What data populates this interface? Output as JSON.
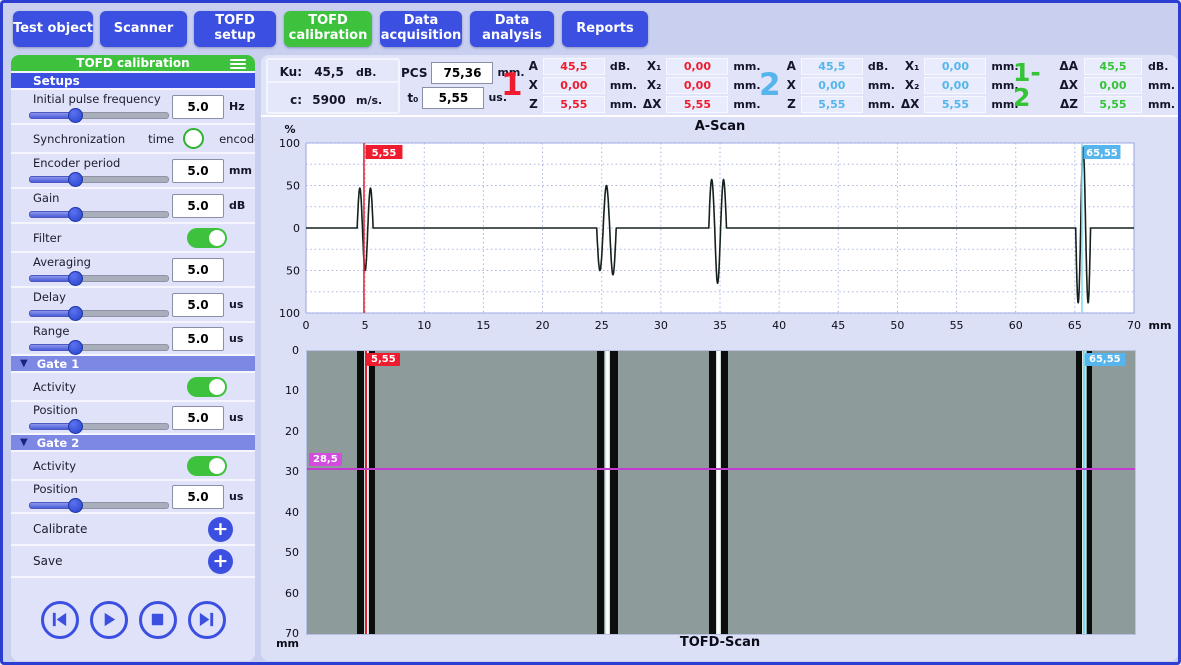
{
  "colors": {
    "accent_blue": "#3b4fe0",
    "accent_green": "#3ec23e",
    "gate_header": "#7c88e4",
    "value_red": "#ee1c2e",
    "value_blue": "#55b5ec",
    "value_green": "#35c435",
    "tofd_background": "#8d9c9a",
    "magenta_cursor": "#c33ad1"
  },
  "nav": {
    "items": [
      {
        "label": "Test object",
        "active": false
      },
      {
        "label": "Scanner",
        "active": false
      },
      {
        "label": "TOFD setup",
        "active": false
      },
      {
        "label": "TOFD calibration",
        "active": true
      },
      {
        "label": "Data acquisition",
        "active": false
      },
      {
        "label": "Data analysis",
        "active": false
      },
      {
        "label": "Reports",
        "active": false
      }
    ]
  },
  "sidebar": {
    "header": {
      "title": "TOFD calibration"
    },
    "setups_title": "Setups",
    "rows": {
      "initial_pulse_frequency": {
        "label": "Initial pulse frequency",
        "value": "5.0",
        "unit": "Hz"
      },
      "synchronization": {
        "label": "Synchronization",
        "time_label": "time",
        "encoder_label": "encoder",
        "selected": "time"
      },
      "encoder_period": {
        "label": "Encoder period",
        "value": "5.0",
        "unit": "mm"
      },
      "gain": {
        "label": "Gain",
        "value": "5.0",
        "unit": "dB"
      },
      "filter": {
        "label": "Filter",
        "on": true
      },
      "averaging": {
        "label": "Averaging",
        "value": "5.0",
        "unit": ""
      },
      "delay": {
        "label": "Delay",
        "value": "5.0",
        "unit": "us"
      },
      "range": {
        "label": "Range",
        "value": "5.0",
        "unit": "us"
      }
    },
    "gate1": {
      "title": "Gate 1",
      "activity_label": "Activity",
      "activity_on": true,
      "position_label": "Position",
      "position_value": "5.0",
      "position_unit": "us"
    },
    "gate2": {
      "title": "Gate 2",
      "activity_label": "Activity",
      "activity_on": true,
      "position_label": "Position",
      "position_value": "5.0",
      "position_unit": "us"
    },
    "calibrate_label": "Calibrate",
    "save_label": "Save"
  },
  "info_bar": {
    "ku": {
      "label": "Ku:",
      "value": "45,5",
      "unit": "dB."
    },
    "c": {
      "label": "c:",
      "value": "5900",
      "unit": "m/s."
    },
    "pcs": {
      "label": "PCS",
      "value": "75,36",
      "unit": "mm."
    },
    "t0": {
      "label": "t₀",
      "value": "5,55",
      "unit": "us."
    },
    "group1": {
      "id": "1",
      "rows": [
        {
          "l1": "A",
          "v1": "45,5",
          "u1": "dB.",
          "l2": "X₁",
          "v2": "0,00",
          "u2": "mm."
        },
        {
          "l1": "X",
          "v1": "0,00",
          "u1": "mm.",
          "l2": "X₂",
          "v2": "0,00",
          "u2": "mm."
        },
        {
          "l1": "Z",
          "v1": "5,55",
          "u1": "mm.",
          "l2": "ΔX",
          "v2": "5,55",
          "u2": "mm."
        }
      ]
    },
    "group2": {
      "id": "2",
      "rows": [
        {
          "l1": "A",
          "v1": "45,5",
          "u1": "dB.",
          "l2": "X₁",
          "v2": "0,00",
          "u2": "mm."
        },
        {
          "l1": "X",
          "v1": "0,00",
          "u1": "mm.",
          "l2": "X₂",
          "v2": "0,00",
          "u2": "mm."
        },
        {
          "l1": "Z",
          "v1": "5,55",
          "u1": "mm.",
          "l2": "ΔX",
          "v2": "5,55",
          "u2": "mm."
        }
      ]
    },
    "group12": {
      "id": "1-2",
      "rows": [
        {
          "l": "ΔA",
          "v": "45,5",
          "u": "dB."
        },
        {
          "l": "ΔX",
          "v": "0,00",
          "u": "mm."
        },
        {
          "l": "ΔZ",
          "v": "5,55",
          "u": "mm."
        }
      ]
    }
  },
  "chart_data": [
    {
      "type": "line",
      "title": "A-Scan",
      "x_unit": "mm",
      "y_unit": "%",
      "xlim": [
        0,
        70
      ],
      "ylim": [
        -100,
        100
      ],
      "xticks": [
        0,
        5,
        10,
        15,
        20,
        25,
        30,
        35,
        40,
        45,
        50,
        55,
        60,
        65,
        70
      ],
      "ytick_values": [
        100,
        50,
        0,
        -50,
        -100
      ],
      "ytick_labels": [
        "100",
        "50",
        "0",
        "50",
        "100"
      ],
      "grid": true,
      "series": [
        {
          "name": "A-scan waveform",
          "color": "#15211d",
          "baseline_pct": 0,
          "pulses": [
            {
              "center_mm": 5.0,
              "half_cycle_mm": 0.45,
              "lobes_pct": [
                47,
                -50,
                47
              ]
            },
            {
              "center_mm": 25.4,
              "half_cycle_mm": 0.55,
              "lobes_pct": [
                -50,
                50,
                -55
              ]
            },
            {
              "center_mm": 34.8,
              "half_cycle_mm": 0.5,
              "lobes_pct": [
                57,
                -65,
                57
              ]
            },
            {
              "center_mm": 65.7,
              "half_cycle_mm": 0.42,
              "lobes_pct": [
                -88,
                95,
                -88
              ]
            }
          ]
        }
      ],
      "cursors": [
        {
          "label": "5,55",
          "x_mm": 4.9,
          "line_color": "#e02030",
          "label_bg": "#ee1c2e"
        },
        {
          "label": "65,55",
          "x_mm": 65.6,
          "line_color": "#7adcf2",
          "label_bg": "#55b5ec"
        }
      ]
    },
    {
      "type": "heatmap",
      "title": "TOFD-Scan",
      "y_unit": "mm",
      "xlim": [
        0,
        70
      ],
      "ylim": [
        0,
        70
      ],
      "yticks": [
        0,
        10,
        20,
        30,
        40,
        50,
        60,
        70
      ],
      "background": "#8d9c9a",
      "bands": [
        {
          "center_mm": 5.0,
          "dark_width_mm": 0.55,
          "light_width_mm": 0.42
        },
        {
          "center_mm": 25.4,
          "dark_width_mm": 0.66,
          "light_width_mm": 0.5
        },
        {
          "center_mm": 34.8,
          "dark_width_mm": 0.6,
          "light_width_mm": 0.45
        },
        {
          "center_mm": 65.7,
          "dark_width_mm": 0.5,
          "light_width_mm": 0.4
        }
      ],
      "v_cursors": [
        {
          "label": "5,55",
          "x_mm": 4.9,
          "line_color": "#e02030",
          "label_bg": "#ee1c2e"
        },
        {
          "label": "65,55",
          "x_mm": 65.6,
          "line_color": "#7adcf2",
          "label_bg": "#55b5ec"
        }
      ],
      "h_cursor": {
        "label": "28,5",
        "y_mm": 29,
        "line_color": "#c33ad1",
        "label_bg": "#d44be0"
      }
    }
  ]
}
